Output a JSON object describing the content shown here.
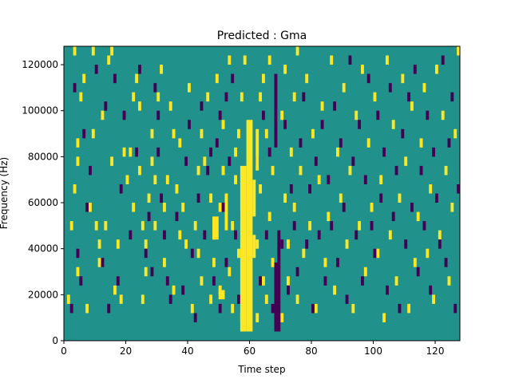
{
  "chart_data": {
    "type": "heatmap",
    "title": "Predicted : Gma",
    "xlabel": "Time step",
    "ylabel": "Frequency (Hz)",
    "xlim": [
      0,
      128
    ],
    "ylim": [
      0,
      128000
    ],
    "x_ticks": [
      0,
      20,
      40,
      60,
      80,
      100,
      120
    ],
    "x_tick_labels": [
      "0",
      "20",
      "40",
      "60",
      "80",
      "100",
      "120"
    ],
    "y_ticks": [
      0,
      20000,
      40000,
      60000,
      80000,
      100000,
      120000
    ],
    "y_tick_labels": [
      "0",
      "20000",
      "40000",
      "60000",
      "80000",
      "100000",
      "120000"
    ],
    "grid": false,
    "colormap": "viridis",
    "colors": {
      "background": "#21918c",
      "high": "#fde725",
      "low": "#440154"
    },
    "bands": [
      {
        "value": "high",
        "x": [
          59,
          61
        ],
        "y": [
          4000,
          96000
        ]
      },
      {
        "value": "high",
        "x": [
          57,
          59
        ],
        "y": [
          4000,
          76000
        ]
      },
      {
        "value": "high",
        "x": [
          61,
          62
        ],
        "y": [
          54000,
          70000
        ]
      },
      {
        "value": "high",
        "x": [
          61,
          62
        ],
        "y": [
          36000,
          46000
        ]
      },
      {
        "value": "high",
        "x": [
          62,
          63
        ],
        "y": [
          74000,
          92000
        ]
      },
      {
        "value": "low",
        "x": [
          68,
          70
        ],
        "y": [
          4000,
          34000
        ]
      },
      {
        "value": "low",
        "x": [
          69,
          70
        ],
        "y": [
          34000,
          48000
        ]
      },
      {
        "value": "low",
        "x": [
          68,
          69
        ],
        "y": [
          84000,
          116000
        ]
      },
      {
        "value": "high",
        "x": [
          50,
          52
        ],
        "y": [
          18000,
          22000
        ]
      },
      {
        "value": "high",
        "x": [
          48,
          50
        ],
        "y": [
          44000,
          54000
        ]
      },
      {
        "value": "high",
        "x": [
          52,
          53
        ],
        "y": [
          48000,
          64000
        ]
      }
    ],
    "high_cells": [
      [
        1,
        4
      ],
      [
        2,
        12
      ],
      [
        3,
        16
      ],
      [
        3,
        31
      ],
      [
        4,
        7
      ],
      [
        4,
        19
      ],
      [
        4,
        21
      ],
      [
        5,
        26
      ],
      [
        6,
        28
      ],
      [
        7,
        3
      ],
      [
        8,
        14
      ],
      [
        9,
        22
      ],
      [
        9,
        31
      ],
      [
        10,
        12
      ],
      [
        11,
        10
      ],
      [
        11,
        8
      ],
      [
        12,
        24
      ],
      [
        13,
        12
      ],
      [
        14,
        30
      ],
      [
        15,
        19
      ],
      [
        15,
        31
      ],
      [
        16,
        5
      ],
      [
        17,
        10
      ],
      [
        18,
        4
      ],
      [
        19,
        20
      ],
      [
        20,
        17
      ],
      [
        21,
        20
      ],
      [
        22,
        14
      ],
      [
        22,
        26
      ],
      [
        23,
        28
      ],
      [
        24,
        18
      ],
      [
        24,
        25
      ],
      [
        25,
        4
      ],
      [
        25,
        12
      ],
      [
        26,
        7
      ],
      [
        26,
        10
      ],
      [
        27,
        15
      ],
      [
        28,
        19
      ],
      [
        28,
        22
      ],
      [
        29,
        17
      ],
      [
        29,
        12
      ],
      [
        30,
        26
      ],
      [
        31,
        29
      ],
      [
        32,
        8
      ],
      [
        32,
        14
      ],
      [
        33,
        17
      ],
      [
        34,
        25
      ],
      [
        35,
        22
      ],
      [
        35,
        5
      ],
      [
        36,
        16
      ],
      [
        37,
        11
      ],
      [
        37,
        21
      ],
      [
        38,
        14
      ],
      [
        39,
        10
      ],
      [
        40,
        27
      ],
      [
        41,
        3
      ],
      [
        42,
        12
      ],
      [
        43,
        9
      ],
      [
        43,
        18
      ],
      [
        44,
        6
      ],
      [
        44,
        22
      ],
      [
        45,
        19
      ],
      [
        46,
        26
      ],
      [
        47,
        4
      ],
      [
        47,
        15
      ],
      [
        48,
        8
      ],
      [
        48,
        11
      ],
      [
        49,
        28
      ],
      [
        50,
        14
      ],
      [
        50,
        5
      ],
      [
        51,
        18
      ],
      [
        51,
        23
      ],
      [
        53,
        7
      ],
      [
        53,
        30
      ],
      [
        54,
        3
      ],
      [
        54,
        12
      ],
      [
        55,
        20
      ],
      [
        55,
        17
      ],
      [
        56,
        9
      ],
      [
        56,
        22
      ],
      [
        57,
        2
      ],
      [
        57,
        26
      ],
      [
        58,
        14
      ],
      [
        58,
        30
      ],
      [
        62,
        10
      ],
      [
        62,
        2
      ],
      [
        63,
        26
      ],
      [
        63,
        16
      ],
      [
        64,
        6
      ],
      [
        64,
        28
      ],
      [
        65,
        22
      ],
      [
        65,
        4
      ],
      [
        66,
        13
      ],
      [
        66,
        30
      ],
      [
        67,
        18
      ],
      [
        67,
        8
      ],
      [
        70,
        2
      ],
      [
        70,
        24
      ],
      [
        71,
        15
      ],
      [
        71,
        29
      ],
      [
        72,
        10
      ],
      [
        72,
        6
      ],
      [
        73,
        20
      ],
      [
        74,
        26
      ],
      [
        74,
        14
      ],
      [
        75,
        4
      ],
      [
        75,
        31
      ],
      [
        76,
        18
      ],
      [
        77,
        9
      ],
      [
        78,
        28
      ],
      [
        79,
        12
      ],
      [
        80,
        22
      ],
      [
        81,
        3
      ],
      [
        82,
        17
      ],
      [
        83,
        25
      ],
      [
        84,
        8
      ],
      [
        85,
        13
      ],
      [
        86,
        30
      ],
      [
        87,
        5
      ],
      [
        88,
        20
      ],
      [
        89,
        15
      ],
      [
        90,
        27
      ],
      [
        91,
        10
      ],
      [
        92,
        18
      ],
      [
        93,
        3
      ],
      [
        94,
        24
      ],
      [
        95,
        12
      ],
      [
        96,
        29
      ],
      [
        97,
        7
      ],
      [
        98,
        21
      ],
      [
        99,
        14
      ],
      [
        100,
        26
      ],
      [
        101,
        9
      ],
      [
        102,
        17
      ],
      [
        103,
        2
      ],
      [
        104,
        30
      ],
      [
        105,
        11
      ],
      [
        106,
        23
      ],
      [
        107,
        6
      ],
      [
        108,
        15
      ],
      [
        109,
        28
      ],
      [
        110,
        19
      ],
      [
        111,
        3
      ],
      [
        112,
        25
      ],
      [
        113,
        8
      ],
      [
        114,
        13
      ],
      [
        115,
        21
      ],
      [
        116,
        27
      ],
      [
        117,
        9
      ],
      [
        118,
        16
      ],
      [
        119,
        4
      ],
      [
        120,
        29
      ],
      [
        121,
        11
      ],
      [
        122,
        24
      ],
      [
        123,
        18
      ],
      [
        124,
        6
      ],
      [
        125,
        14
      ],
      [
        126,
        22
      ],
      [
        127,
        31
      ]
    ],
    "low_cells": [
      [
        2,
        3
      ],
      [
        3,
        27
      ],
      [
        4,
        9
      ],
      [
        5,
        6
      ],
      [
        6,
        22
      ],
      [
        7,
        14
      ],
      [
        8,
        18
      ],
      [
        10,
        29
      ],
      [
        12,
        8
      ],
      [
        13,
        25
      ],
      [
        14,
        3
      ],
      [
        16,
        28
      ],
      [
        17,
        6
      ],
      [
        18,
        16
      ],
      [
        19,
        24
      ],
      [
        21,
        11
      ],
      [
        23,
        20
      ],
      [
        24,
        29
      ],
      [
        26,
        9
      ],
      [
        27,
        13
      ],
      [
        28,
        7
      ],
      [
        29,
        27
      ],
      [
        30,
        20
      ],
      [
        30,
        24
      ],
      [
        31,
        15
      ],
      [
        32,
        11
      ],
      [
        33,
        6
      ],
      [
        34,
        4
      ],
      [
        36,
        13
      ],
      [
        38,
        5
      ],
      [
        39,
        19
      ],
      [
        40,
        23
      ],
      [
        41,
        9
      ],
      [
        42,
        2
      ],
      [
        43,
        15
      ],
      [
        44,
        25
      ],
      [
        45,
        11
      ],
      [
        46,
        18
      ],
      [
        47,
        20
      ],
      [
        48,
        6
      ],
      [
        49,
        21
      ],
      [
        50,
        3
      ],
      [
        50,
        24
      ],
      [
        51,
        14
      ],
      [
        52,
        8
      ],
      [
        52,
        26
      ],
      [
        53,
        19
      ],
      [
        54,
        28
      ],
      [
        55,
        11
      ],
      [
        56,
        4
      ],
      [
        57,
        13
      ],
      [
        62,
        19
      ],
      [
        63,
        6
      ],
      [
        64,
        24
      ],
      [
        65,
        11
      ],
      [
        66,
        20
      ],
      [
        67,
        3
      ],
      [
        70,
        10
      ],
      [
        71,
        23
      ],
      [
        72,
        5
      ],
      [
        73,
        16
      ],
      [
        74,
        12
      ],
      [
        75,
        7
      ],
      [
        76,
        21
      ],
      [
        77,
        26
      ],
      [
        78,
        10
      ],
      [
        79,
        16
      ],
      [
        80,
        3
      ],
      [
        81,
        19
      ],
      [
        82,
        11
      ],
      [
        83,
        23
      ],
      [
        84,
        6
      ],
      [
        85,
        17
      ],
      [
        86,
        12
      ],
      [
        87,
        25
      ],
      [
        88,
        8
      ],
      [
        89,
        21
      ],
      [
        90,
        14
      ],
      [
        91,
        4
      ],
      [
        92,
        30
      ],
      [
        93,
        19
      ],
      [
        94,
        11
      ],
      [
        95,
        23
      ],
      [
        96,
        6
      ],
      [
        97,
        17
      ],
      [
        98,
        28
      ],
      [
        99,
        12
      ],
      [
        100,
        9
      ],
      [
        101,
        24
      ],
      [
        102,
        15
      ],
      [
        103,
        20
      ],
      [
        104,
        5
      ],
      [
        105,
        27
      ],
      [
        106,
        13
      ],
      [
        107,
        18
      ],
      [
        108,
        3
      ],
      [
        109,
        22
      ],
      [
        110,
        10
      ],
      [
        111,
        26
      ],
      [
        112,
        14
      ],
      [
        113,
        29
      ],
      [
        114,
        7
      ],
      [
        115,
        18
      ],
      [
        116,
        12
      ],
      [
        117,
        24
      ],
      [
        118,
        5
      ],
      [
        119,
        20
      ],
      [
        120,
        15
      ],
      [
        121,
        10
      ],
      [
        122,
        30
      ],
      [
        123,
        8
      ],
      [
        124,
        21
      ],
      [
        125,
        26
      ],
      [
        126,
        3
      ],
      [
        127,
        16
      ]
    ]
  }
}
